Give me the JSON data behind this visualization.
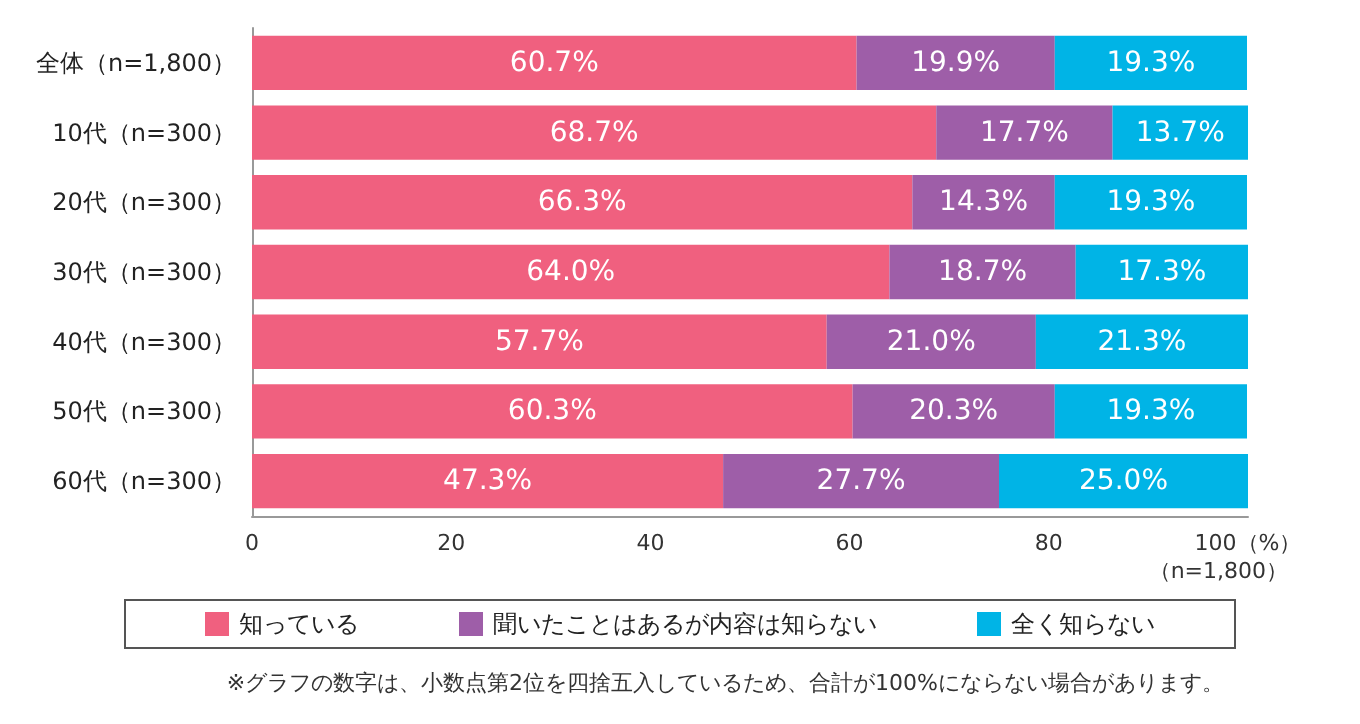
{
  "chart_data": {
    "type": "bar",
    "orientation": "horizontal",
    "stacked": true,
    "grid": false,
    "legend": "bottom",
    "categories": [
      "全体（n=1,800）",
      "10代（n=300）",
      "20代（n=300）",
      "30代（n=300）",
      "40代（n=300）",
      "50代（n=300）",
      "60代（n=300）"
    ],
    "series": [
      {
        "name": "知っている",
        "color": "#f0607f",
        "values": [
          60.7,
          68.7,
          66.3,
          64.0,
          57.7,
          60.3,
          47.3
        ],
        "value_labels": [
          "60.7%",
          "68.7%",
          "66.3%",
          "64.0%",
          "57.7%",
          "60.3%",
          "47.3%"
        ]
      },
      {
        "name": "聞いたことはあるが内容は知らない",
        "color": "#9e5ea8",
        "values": [
          19.9,
          17.7,
          14.3,
          18.7,
          21.0,
          20.3,
          27.7
        ],
        "value_labels": [
          "19.9%",
          "17.7%",
          "14.3%",
          "18.7%",
          "21.0%",
          "20.3%",
          "27.7%"
        ]
      },
      {
        "name": "全く知らない",
        "color": "#00b4e6",
        "values": [
          19.3,
          13.7,
          19.3,
          17.3,
          21.3,
          19.3,
          25.0
        ],
        "value_labels": [
          "19.3%",
          "13.7%",
          "19.3%",
          "17.3%",
          "21.3%",
          "19.3%",
          "25.0%"
        ]
      }
    ],
    "xlim": [
      0,
      100
    ],
    "xticks": [
      0,
      20,
      40,
      60,
      80,
      {
        "value": 100,
        "label": "100（%）"
      }
    ],
    "annotations": [
      "（n=1,800）",
      "※グラフの数字は、小数点第2位を四捨五入しているため、合計が100%にならない場合があります。"
    ]
  }
}
